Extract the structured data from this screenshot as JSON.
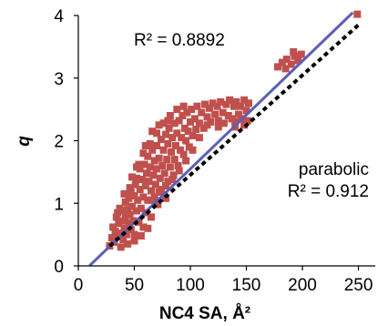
{
  "chart_data": {
    "type": "scatter",
    "title": "",
    "xlabel": "NC4  SA, Å²",
    "ylabel": "q",
    "xlim": [
      0,
      265
    ],
    "ylim": [
      0,
      4
    ],
    "x_ticks": [
      0,
      50,
      100,
      150,
      200,
      250
    ],
    "y_ticks": [
      0,
      1,
      2,
      3,
      4
    ],
    "x_tick_labels": [
      "0",
      "50",
      "100",
      "150",
      "200",
      "250"
    ],
    "y_tick_labels": [
      "0",
      "1",
      "2",
      "3",
      "4"
    ],
    "grid": false,
    "colors": {
      "points": "#c0504d",
      "linear_fit": "#5b5fb5",
      "parabolic_fit": "#000000",
      "axes": "#000000"
    },
    "annotations": {
      "linear_r2": "R² = 0.8892",
      "parabolic_label": "parabolic",
      "parabolic_r2": "R² = 0.912"
    },
    "series": [
      {
        "kind": "points",
        "points": [
          [
            28,
            0.32
          ],
          [
            30,
            0.45
          ],
          [
            31,
            0.62
          ],
          [
            32,
            0.38
          ],
          [
            33,
            0.55
          ],
          [
            34,
            0.78
          ],
          [
            35,
            0.48
          ],
          [
            36,
            0.68
          ],
          [
            37,
            0.92
          ],
          [
            38,
            0.52
          ],
          [
            39,
            0.72
          ],
          [
            40,
            0.88
          ],
          [
            40,
            0.42
          ],
          [
            41,
            0.6
          ],
          [
            42,
            1.02
          ],
          [
            42,
            0.78
          ],
          [
            43,
            0.5
          ],
          [
            44,
            0.9
          ],
          [
            45,
            0.68
          ],
          [
            45,
            1.08
          ],
          [
            46,
            0.82
          ],
          [
            47,
            0.58
          ],
          [
            47,
            1.18
          ],
          [
            48,
            0.95
          ],
          [
            49,
            0.72
          ],
          [
            50,
            1.12
          ],
          [
            50,
            0.5
          ],
          [
            51,
            1.3
          ],
          [
            52,
            0.88
          ],
          [
            52,
            1.4
          ],
          [
            53,
            1.05
          ],
          [
            54,
            0.7
          ],
          [
            55,
            1.22
          ],
          [
            55,
            1.55
          ],
          [
            56,
            0.92
          ],
          [
            57,
            1.38
          ],
          [
            58,
            1.1
          ],
          [
            58,
            0.62
          ],
          [
            59,
            1.62
          ],
          [
            60,
            1.28
          ],
          [
            60,
            0.85
          ],
          [
            61,
            1.48
          ],
          [
            62,
            1.75
          ],
          [
            62,
            1.05
          ],
          [
            63,
            1.35
          ],
          [
            64,
            1.58
          ],
          [
            65,
            1.2
          ],
          [
            65,
            0.78
          ],
          [
            66,
            1.85
          ],
          [
            67,
            1.45
          ],
          [
            68,
            1.68
          ],
          [
            68,
            1.1
          ],
          [
            69,
            1.3
          ],
          [
            70,
            1.92
          ],
          [
            70,
            1.55
          ],
          [
            71,
            0.98
          ],
          [
            72,
            1.72
          ],
          [
            73,
            1.4
          ],
          [
            74,
            2.02
          ],
          [
            74,
            1.22
          ],
          [
            75,
            1.6
          ],
          [
            76,
            1.85
          ],
          [
            77,
            1.48
          ],
          [
            78,
            2.1
          ],
          [
            78,
            1.08
          ],
          [
            79,
            1.7
          ],
          [
            80,
            1.95
          ],
          [
            80,
            1.35
          ],
          [
            81,
            2.2
          ],
          [
            82,
            1.58
          ],
          [
            83,
            1.82
          ],
          [
            84,
            2.05
          ],
          [
            85,
            1.45
          ],
          [
            86,
            2.28
          ],
          [
            86,
            1.7
          ],
          [
            87,
            1.92
          ],
          [
            88,
            2.12
          ],
          [
            89,
            1.6
          ],
          [
            90,
            2.32
          ],
          [
            91,
            1.85
          ],
          [
            92,
            2.05
          ],
          [
            93,
            2.4
          ],
          [
            94,
            1.78
          ],
          [
            95,
            2.2
          ],
          [
            96,
            2.0
          ],
          [
            97,
            2.45
          ],
          [
            98,
            2.15
          ],
          [
            99,
            1.9
          ],
          [
            100,
            2.3
          ],
          [
            101,
            2.5
          ],
          [
            102,
            2.08
          ],
          [
            104,
            2.35
          ],
          [
            105,
            2.18
          ],
          [
            106,
            2.55
          ],
          [
            108,
            2.28
          ],
          [
            110,
            2.45
          ],
          [
            112,
            2.2
          ],
          [
            113,
            2.58
          ],
          [
            115,
            2.38
          ],
          [
            117,
            2.52
          ],
          [
            118,
            2.3
          ],
          [
            120,
            2.6
          ],
          [
            122,
            2.42
          ],
          [
            124,
            2.55
          ],
          [
            125,
            2.32
          ],
          [
            127,
            2.62
          ],
          [
            129,
            2.45
          ],
          [
            130,
            2.28
          ],
          [
            132,
            2.58
          ],
          [
            134,
            2.4
          ],
          [
            135,
            2.65
          ],
          [
            137,
            2.35
          ],
          [
            139,
            2.55
          ],
          [
            140,
            2.3
          ],
          [
            141,
            2.62
          ],
          [
            143,
            2.42
          ],
          [
            145,
            2.55
          ],
          [
            146,
            2.35
          ],
          [
            148,
            2.65
          ],
          [
            150,
            2.48
          ],
          [
            151,
            2.32
          ],
          [
            152,
            2.6
          ],
          [
            140,
            2.22
          ],
          [
            148,
            2.25
          ],
          [
            125,
            2.22
          ],
          [
            115,
            2.25
          ],
          [
            178,
            3.18
          ],
          [
            182,
            3.25
          ],
          [
            186,
            3.3
          ],
          [
            190,
            3.22
          ],
          [
            193,
            3.35
          ],
          [
            196,
            3.28
          ],
          [
            199,
            3.38
          ],
          [
            185,
            3.15
          ],
          [
            192,
            3.42
          ],
          [
            38,
            0.3
          ],
          [
            44,
            0.35
          ],
          [
            50,
            0.4
          ],
          [
            56,
            0.48
          ],
          [
            62,
            0.6
          ],
          [
            46,
            1.25
          ],
          [
            52,
            1.58
          ],
          [
            58,
            1.8
          ],
          [
            64,
            1.95
          ],
          [
            70,
            2.12
          ],
          [
            76,
            2.28
          ],
          [
            82,
            2.4
          ],
          [
            88,
            2.5
          ],
          [
            94,
            2.55
          ],
          [
            66,
            1.05
          ],
          [
            72,
            1.18
          ],
          [
            78,
            1.28
          ],
          [
            84,
            1.38
          ],
          [
            90,
            1.52
          ],
          [
            96,
            1.68
          ],
          [
            102,
            1.85
          ],
          [
            108,
            2.05
          ],
          [
            35,
            0.85
          ],
          [
            41,
            1.15
          ],
          [
            48,
            1.42
          ],
          [
            54,
            1.62
          ],
          [
            60,
            1.92
          ],
          [
            66,
            2.15
          ],
          [
            72,
            2.25
          ],
          [
            80,
            2.32
          ],
          [
            249,
            4.02
          ]
        ]
      },
      {
        "kind": "linear_fit",
        "slope": 0.01721,
        "intercept": -0.17,
        "x_range": [
          10,
          245
        ]
      },
      {
        "kind": "parabolic_fit",
        "a": 9e-07,
        "b": 0.01565,
        "c": -0.12,
        "x_range": [
          28,
          250
        ]
      }
    ]
  }
}
